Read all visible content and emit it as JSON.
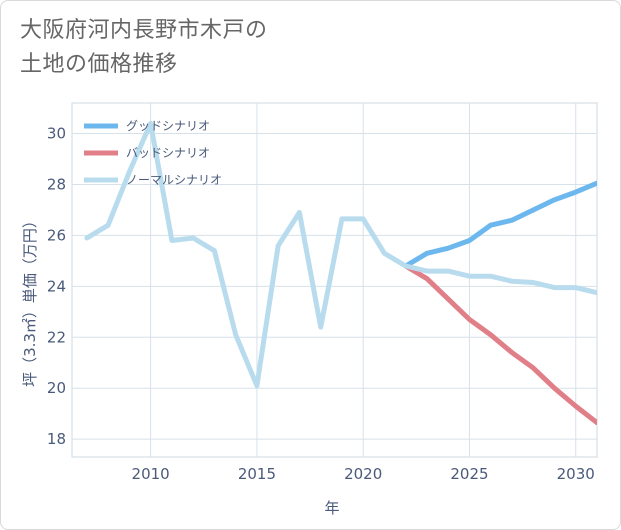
{
  "title_lines": [
    "大阪府河内長野市木戸の",
    "土地の価格推移"
  ],
  "chart_data": {
    "type": "line",
    "xlabel": "年",
    "ylabel": "坪（3.3㎡）単価（万円）",
    "xlim": [
      2006.3,
      2031
    ],
    "ylim": [
      17.3,
      31.2
    ],
    "xticks": [
      2010,
      2015,
      2020,
      2025,
      2030
    ],
    "yticks": [
      18,
      20,
      22,
      24,
      26,
      28,
      30
    ],
    "grid": true,
    "legend_position": "top-left",
    "series": [
      {
        "name": "グッドシナリオ",
        "color": "#6cb8ee",
        "x": [
          2022,
          2023,
          2024,
          2025,
          2026,
          2027,
          2028,
          2029,
          2030,
          2031
        ],
        "values": [
          24.8,
          25.3,
          25.5,
          25.8,
          26.4,
          26.6,
          27.0,
          27.4,
          27.7,
          28.05
        ]
      },
      {
        "name": "バッドシナリオ",
        "color": "#e07f87",
        "x": [
          2022,
          2023,
          2024,
          2025,
          2026,
          2027,
          2028,
          2029,
          2030,
          2031
        ],
        "values": [
          24.8,
          24.3,
          23.5,
          22.7,
          22.1,
          21.4,
          20.8,
          20.0,
          19.3,
          18.65
        ]
      },
      {
        "name": "ノーマルシナリオ",
        "color": "#b8dcee",
        "x": [
          2007,
          2008,
          2009,
          2010,
          2011,
          2012,
          2013,
          2014,
          2015,
          2016,
          2017,
          2018,
          2019,
          2020,
          2021,
          2022,
          2023,
          2024,
          2025,
          2026,
          2027,
          2028,
          2029,
          2030,
          2031
        ],
        "values": [
          25.9,
          26.4,
          28.5,
          30.4,
          25.8,
          25.9,
          25.4,
          22.1,
          20.1,
          25.6,
          26.9,
          22.4,
          26.65,
          26.65,
          25.3,
          24.8,
          24.6,
          24.6,
          24.4,
          24.4,
          24.2,
          24.15,
          23.95,
          23.95,
          23.75
        ]
      }
    ]
  }
}
